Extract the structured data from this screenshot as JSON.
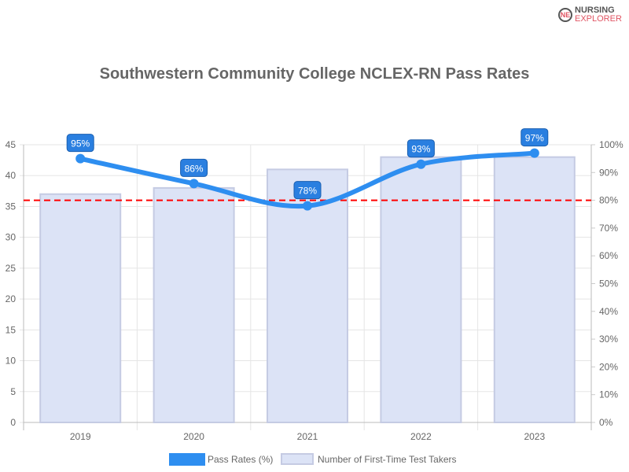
{
  "logo": {
    "line1": "NURSING",
    "line2": "EXPLORER"
  },
  "chart_data": {
    "type": "bar",
    "title": "Southwestern Community College NCLEX-RN Pass Rates",
    "categories": [
      "2019",
      "2020",
      "2021",
      "2022",
      "2023"
    ],
    "series": [
      {
        "name": "Pass Rates (%)",
        "type": "line",
        "axis": "right",
        "values": [
          95,
          86,
          78,
          93,
          97
        ],
        "labels": [
          "95%",
          "86%",
          "78%",
          "93%",
          "97%"
        ],
        "color": "#2e8ef0"
      },
      {
        "name": "Number of First-Time Test Takers",
        "type": "bar",
        "axis": "left",
        "values": [
          37,
          38,
          41,
          43,
          43
        ],
        "color": "#dce3f6"
      }
    ],
    "left_axis": {
      "range": [
        0,
        45
      ],
      "ticks": [
        "0",
        "5",
        "10",
        "15",
        "20",
        "25",
        "30",
        "35",
        "40",
        "45"
      ]
    },
    "right_axis": {
      "range": [
        0,
        100
      ],
      "ticks": [
        "0%",
        "10%",
        "20%",
        "30%",
        "40%",
        "50%",
        "60%",
        "70%",
        "80%",
        "90%",
        "100%"
      ]
    },
    "reference_line": {
      "value": 80,
      "axis": "right",
      "color": "#ff0000",
      "style": "dashed"
    },
    "grid": true,
    "legend": "bottom"
  }
}
